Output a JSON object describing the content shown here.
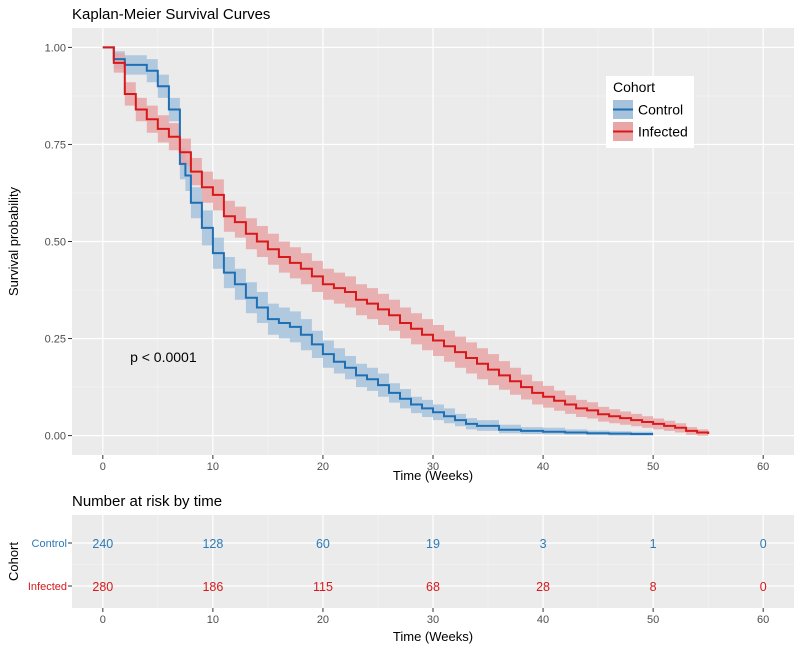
{
  "chart_data": [
    {
      "type": "line",
      "subtype": "kaplan-meier-step",
      "title": "Kaplan-Meier Survival Curves",
      "xlabel": "Time (Weeks)",
      "ylabel": "Survival probability",
      "xlim": [
        -2.8,
        62.8
      ],
      "ylim": [
        -0.05,
        1.05
      ],
      "x_ticks": [
        0,
        10,
        20,
        30,
        40,
        50,
        60
      ],
      "x_tick_labels": [
        "0",
        "10",
        "20",
        "30",
        "40",
        "50",
        "60"
      ],
      "y_ticks": [
        0,
        0.25,
        0.5,
        0.75,
        1.0
      ],
      "y_tick_labels": [
        "0.00",
        "0.25",
        "0.50",
        "0.75",
        "1.00"
      ],
      "grid": true,
      "legend": {
        "title": "Cohort",
        "position": "top-right"
      },
      "annotation": {
        "text": "p < 0.0001",
        "x": 5.5,
        "y": 0.19
      },
      "series": [
        {
          "name": "Control",
          "color": "#1f6fb4",
          "band_color": "#a7c3dc",
          "x": [
            0,
            1,
            2,
            4,
            5,
            6,
            7,
            7.5,
            8,
            9,
            10,
            11,
            12,
            13,
            14,
            15,
            16,
            17,
            18,
            19,
            20,
            21,
            22,
            23,
            24,
            25,
            26,
            27,
            28,
            29,
            30,
            31,
            32,
            33,
            34,
            36,
            38,
            40,
            42,
            44,
            46,
            48,
            50
          ],
          "y": [
            1.0,
            0.97,
            0.955,
            0.94,
            0.9,
            0.84,
            0.7,
            0.67,
            0.6,
            0.535,
            0.47,
            0.42,
            0.39,
            0.355,
            0.33,
            0.3,
            0.29,
            0.28,
            0.26,
            0.235,
            0.21,
            0.19,
            0.175,
            0.155,
            0.145,
            0.13,
            0.11,
            0.095,
            0.08,
            0.07,
            0.06,
            0.05,
            0.04,
            0.03,
            0.025,
            0.015,
            0.012,
            0.01,
            0.008,
            0.006,
            0.005,
            0.004,
            0.004
          ],
          "lower": [
            1.0,
            0.945,
            0.93,
            0.91,
            0.87,
            0.81,
            0.66,
            0.63,
            0.56,
            0.49,
            0.43,
            0.38,
            0.35,
            0.315,
            0.29,
            0.26,
            0.25,
            0.24,
            0.22,
            0.2,
            0.175,
            0.16,
            0.145,
            0.125,
            0.115,
            0.1,
            0.085,
            0.07,
            0.058,
            0.048,
            0.04,
            0.032,
            0.024,
            0.016,
            0.012,
            0.006,
            0.004,
            0.003,
            0.002,
            0.001,
            0.0,
            0.0,
            0.0
          ],
          "upper": [
            1.0,
            0.99,
            0.98,
            0.97,
            0.93,
            0.87,
            0.74,
            0.71,
            0.64,
            0.58,
            0.51,
            0.46,
            0.43,
            0.395,
            0.37,
            0.34,
            0.33,
            0.32,
            0.3,
            0.27,
            0.245,
            0.225,
            0.205,
            0.185,
            0.175,
            0.16,
            0.135,
            0.12,
            0.1,
            0.092,
            0.08,
            0.07,
            0.056,
            0.045,
            0.04,
            0.028,
            0.022,
            0.02,
            0.016,
            0.013,
            0.011,
            0.01,
            0.01
          ]
        },
        {
          "name": "Infected",
          "color": "#d7191c",
          "band_color": "#e8a6a6",
          "x": [
            0,
            1,
            2,
            3,
            4,
            5,
            6,
            7,
            8,
            9,
            10,
            11,
            12,
            13,
            14,
            15,
            16,
            17,
            18,
            19,
            20,
            21,
            22,
            23,
            24,
            25,
            26,
            27,
            28,
            29,
            30,
            31,
            32,
            33,
            34,
            35,
            36,
            37,
            38,
            39,
            40,
            41,
            42,
            43,
            44,
            45,
            46,
            47,
            48,
            49,
            50,
            51,
            52,
            53,
            54,
            55
          ],
          "y": [
            1.0,
            0.96,
            0.88,
            0.84,
            0.815,
            0.79,
            0.77,
            0.73,
            0.68,
            0.64,
            0.62,
            0.565,
            0.55,
            0.52,
            0.5,
            0.48,
            0.46,
            0.445,
            0.43,
            0.41,
            0.39,
            0.38,
            0.37,
            0.35,
            0.34,
            0.325,
            0.31,
            0.29,
            0.275,
            0.26,
            0.245,
            0.23,
            0.215,
            0.2,
            0.185,
            0.17,
            0.155,
            0.14,
            0.125,
            0.11,
            0.1,
            0.09,
            0.08,
            0.07,
            0.065,
            0.055,
            0.05,
            0.045,
            0.04,
            0.035,
            0.03,
            0.025,
            0.02,
            0.012,
            0.008,
            0.004
          ],
          "lower": [
            1.0,
            0.935,
            0.85,
            0.81,
            0.78,
            0.755,
            0.735,
            0.695,
            0.645,
            0.6,
            0.58,
            0.525,
            0.51,
            0.48,
            0.46,
            0.44,
            0.42,
            0.405,
            0.39,
            0.37,
            0.35,
            0.34,
            0.33,
            0.31,
            0.3,
            0.285,
            0.27,
            0.25,
            0.235,
            0.22,
            0.205,
            0.19,
            0.175,
            0.16,
            0.145,
            0.13,
            0.118,
            0.105,
            0.093,
            0.08,
            0.072,
            0.064,
            0.056,
            0.048,
            0.044,
            0.036,
            0.032,
            0.028,
            0.024,
            0.02,
            0.016,
            0.012,
            0.008,
            0.002,
            0.0,
            0.0
          ],
          "upper": [
            1.0,
            0.985,
            0.91,
            0.87,
            0.85,
            0.825,
            0.805,
            0.765,
            0.715,
            0.68,
            0.66,
            0.605,
            0.59,
            0.56,
            0.54,
            0.52,
            0.5,
            0.485,
            0.47,
            0.45,
            0.43,
            0.42,
            0.41,
            0.39,
            0.38,
            0.365,
            0.35,
            0.33,
            0.315,
            0.3,
            0.285,
            0.27,
            0.255,
            0.24,
            0.225,
            0.21,
            0.192,
            0.175,
            0.157,
            0.14,
            0.128,
            0.116,
            0.104,
            0.092,
            0.086,
            0.074,
            0.068,
            0.062,
            0.056,
            0.05,
            0.044,
            0.038,
            0.032,
            0.022,
            0.016,
            0.008
          ]
        }
      ]
    },
    {
      "type": "table",
      "title": "Number at risk by time",
      "xlabel": "Time (Weeks)",
      "ylabel": "Cohort",
      "xlim": [
        -2.8,
        62.8
      ],
      "x_ticks": [
        0,
        10,
        20,
        30,
        40,
        50,
        60
      ],
      "x_tick_labels": [
        "0",
        "10",
        "20",
        "30",
        "40",
        "50",
        "60"
      ],
      "rows": [
        {
          "name": "Control",
          "color": "#2c7bb6",
          "values": [
            240,
            128,
            60,
            19,
            3,
            1,
            0
          ]
        },
        {
          "name": "Infected",
          "color": "#d7191c",
          "values": [
            280,
            186,
            115,
            68,
            28,
            8,
            0
          ]
        }
      ]
    }
  ]
}
